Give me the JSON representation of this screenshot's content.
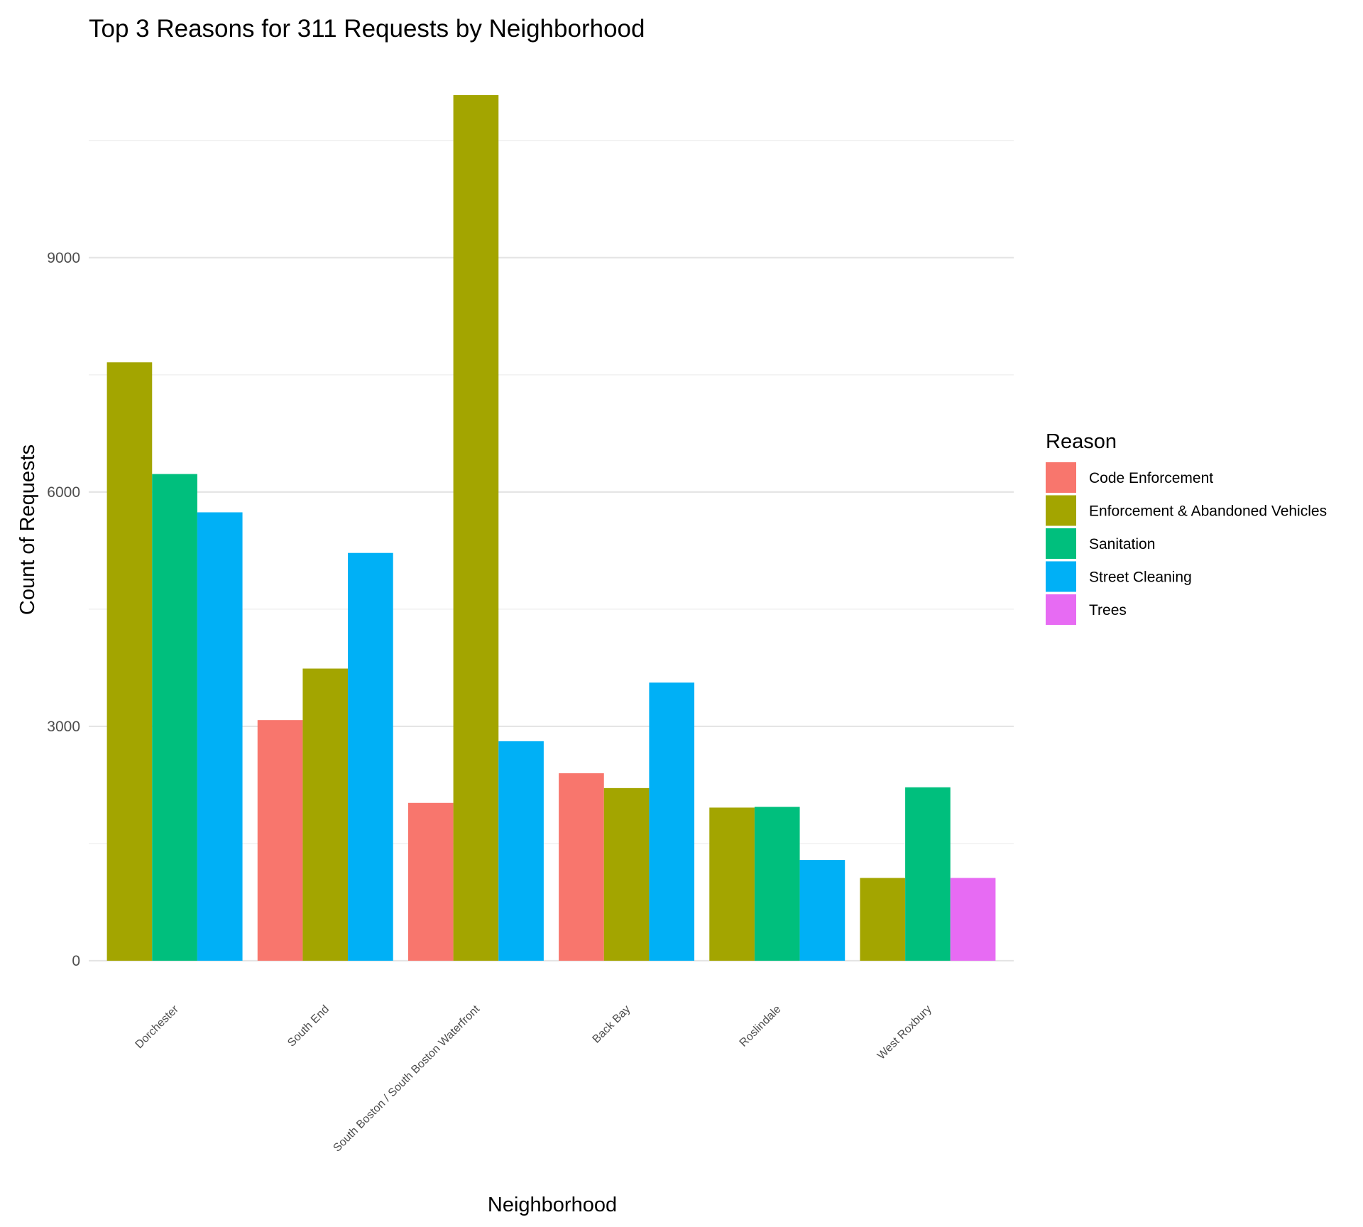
{
  "chart_data": {
    "type": "bar",
    "title": "Top 3 Reasons for 311 Requests by Neighborhood",
    "xlabel": "Neighborhood",
    "ylabel": "Count of Requests",
    "ylim": [
      0,
      11080
    ],
    "yticks": [
      0,
      3000,
      6000,
      9000
    ],
    "grid": true,
    "legend_title": "Reason",
    "legend_position": "right",
    "categories": [
      "Dorchester",
      "South End",
      "South Boston / South Boston Waterfront",
      "Back Bay",
      "Roslindale",
      "West Roxbury"
    ],
    "series": [
      {
        "name": "Code Enforcement",
        "color": "#F8766D",
        "values": [
          null,
          3080,
          2020,
          2400,
          null,
          null
        ]
      },
      {
        "name": "Enforcement & Abandoned Vehicles",
        "color": "#A3A500",
        "values": [
          7660,
          3740,
          11080,
          2210,
          1960,
          1060
        ]
      },
      {
        "name": "Sanitation",
        "color": "#00BF7D",
        "values": [
          6230,
          null,
          null,
          null,
          1970,
          2220
        ]
      },
      {
        "name": "Street Cleaning",
        "color": "#00B0F6",
        "values": [
          5740,
          5220,
          2810,
          3560,
          1290,
          null
        ]
      },
      {
        "name": "Trees",
        "color": "#E76BF3",
        "values": [
          null,
          null,
          null,
          null,
          null,
          1060
        ]
      }
    ]
  }
}
